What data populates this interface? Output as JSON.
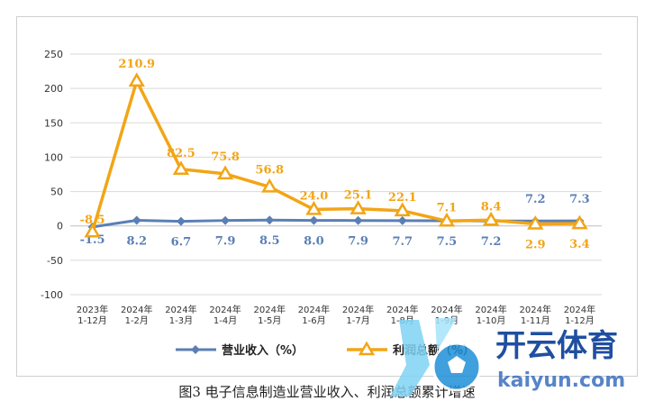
{
  "caption": "图3   电子信息制造业营业收入、利润总额累计增速",
  "colors": {
    "revenue": "#5b7fb5",
    "profit": "#f2a516",
    "grid": "#d9d9d9",
    "zero": "#bfbfbf"
  },
  "watermark": {
    "brand": "开云体育",
    "domain": "kaiyun.com"
  },
  "chart_data": {
    "type": "line",
    "categories": [
      [
        "2023年",
        "1-12月"
      ],
      [
        "2024年",
        "1-2月"
      ],
      [
        "2024年",
        "1-3月"
      ],
      [
        "2024年",
        "1-4月"
      ],
      [
        "2024年",
        "1-5月"
      ],
      [
        "2024年",
        "1-6月"
      ],
      [
        "2024年",
        "1-7月"
      ],
      [
        "2024年",
        "1-8月"
      ],
      [
        "2024年",
        "1-9月"
      ],
      [
        "2024年",
        "1-10月"
      ],
      [
        "2024年",
        "1-11月"
      ],
      [
        "2024年",
        "1-12月"
      ]
    ],
    "series": [
      {
        "name": "营业收入（%）",
        "marker": "diamond",
        "color": "#5b7fb5",
        "values": [
          -1.5,
          8.2,
          6.7,
          7.9,
          8.5,
          8.0,
          7.9,
          7.7,
          7.5,
          7.2,
          7.2,
          7.3
        ],
        "labels": [
          "-1.5",
          "8.2",
          "6.7",
          "7.9",
          "8.5",
          "8.0",
          "7.9",
          "7.7",
          "7.5",
          "7.2",
          "7.2",
          "7.3"
        ]
      },
      {
        "name": "利润总额（%）",
        "marker": "triangle",
        "color": "#f2a516",
        "values": [
          -8.5,
          210.9,
          82.5,
          75.8,
          56.8,
          24.0,
          25.1,
          22.1,
          7.1,
          8.4,
          2.9,
          3.4
        ],
        "labels": [
          "-8.5",
          "210.9",
          "82.5",
          "75.8",
          "56.8",
          "24.0",
          "25.1",
          "22.1",
          "7.1",
          "8.4",
          "2.9",
          "3.4"
        ]
      }
    ],
    "yticks": [
      250,
      200,
      150,
      100,
      50,
      0,
      -50,
      -100
    ],
    "ylim": [
      -100,
      250
    ],
    "grid": true,
    "legend": "bottom-center"
  }
}
